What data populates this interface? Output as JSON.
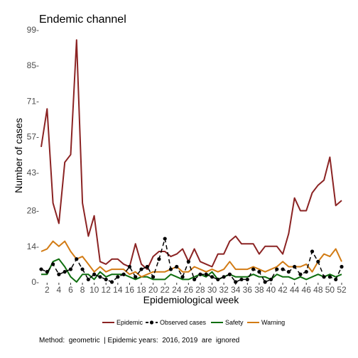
{
  "chart_data": {
    "type": "line",
    "title": "Endemic channel",
    "xlabel": "Epidemiological week",
    "ylabel": "Number of cases",
    "xlim": [
      1,
      52
    ],
    "ylim": [
      0,
      99
    ],
    "x_ticks": [
      2,
      4,
      6,
      8,
      10,
      12,
      14,
      16,
      18,
      20,
      22,
      24,
      26,
      28,
      30,
      32,
      34,
      36,
      38,
      40,
      42,
      44,
      46,
      48,
      50,
      52
    ],
    "y_ticks": [
      0,
      14,
      28,
      43,
      57,
      71,
      85,
      99
    ],
    "y_tick_labels": [
      "0-",
      "14-",
      "28-",
      "43-",
      "57-",
      "71-",
      "85-",
      "99-"
    ],
    "grid": false,
    "legend_position": "bottom",
    "x": [
      1,
      2,
      3,
      4,
      5,
      6,
      7,
      8,
      9,
      10,
      11,
      12,
      13,
      14,
      15,
      16,
      17,
      18,
      19,
      20,
      21,
      22,
      23,
      24,
      25,
      26,
      27,
      28,
      29,
      30,
      31,
      32,
      33,
      34,
      35,
      36,
      37,
      38,
      39,
      40,
      41,
      42,
      43,
      44,
      45,
      46,
      47,
      48,
      49,
      50,
      51,
      52
    ],
    "series": [
      {
        "name": "Epidemic",
        "color": "#8B2323",
        "style": "solid",
        "values": [
          53,
          68,
          31,
          23,
          47,
          50,
          95,
          31,
          18,
          26,
          8,
          7,
          9,
          9,
          7,
          6,
          15,
          7,
          5,
          10,
          12,
          12,
          10,
          11,
          13,
          8,
          13,
          8,
          7,
          6,
          11,
          11,
          16,
          18,
          15,
          15,
          15,
          11,
          14,
          14,
          14,
          11,
          19,
          33,
          28,
          28,
          35,
          38,
          40,
          49,
          30,
          32
        ]
      },
      {
        "name": "Observed cases",
        "color": "#000000",
        "style": "dashed-points",
        "values": [
          5,
          4,
          7,
          3,
          4,
          5,
          9,
          5,
          1,
          3,
          2,
          1,
          0,
          2,
          3,
          6,
          2,
          5,
          6,
          2,
          9,
          17,
          5,
          6,
          2,
          8,
          1,
          3,
          3,
          2,
          1,
          2,
          3,
          0,
          1,
          1,
          5,
          4,
          0,
          1,
          5,
          5,
          4,
          6,
          3,
          4,
          12,
          8,
          2,
          2,
          1,
          6
        ]
      },
      {
        "name": "Safety",
        "color": "#0F6E0F",
        "style": "solid",
        "values": [
          3,
          3,
          8,
          9,
          6,
          2,
          0,
          3,
          3,
          1,
          4,
          2,
          3,
          3,
          3,
          2,
          1,
          2,
          2,
          1,
          1,
          1,
          3,
          2,
          1,
          1,
          2,
          3,
          2,
          4,
          1,
          2,
          3,
          2,
          2,
          2,
          3,
          2,
          2,
          1,
          3,
          2,
          2,
          1,
          2,
          1,
          2,
          3,
          2,
          3,
          2,
          3
        ]
      },
      {
        "name": "Warning",
        "color": "#D27B14",
        "style": "solid",
        "values": [
          12,
          13,
          16,
          14,
          16,
          12,
          9,
          10,
          7,
          4,
          6,
          4,
          5,
          5,
          5,
          3,
          4,
          2,
          3,
          4,
          4,
          4,
          5,
          6,
          4,
          4,
          6,
          5,
          4,
          5,
          4,
          5,
          8,
          5,
          5,
          5,
          6,
          5,
          4,
          5,
          6,
          8,
          6,
          6,
          6,
          7,
          4,
          8,
          11,
          10,
          13,
          8
        ]
      }
    ],
    "caption": "Method:  geometric  | Epidemic years:  2016, 2019  are  ignored"
  }
}
